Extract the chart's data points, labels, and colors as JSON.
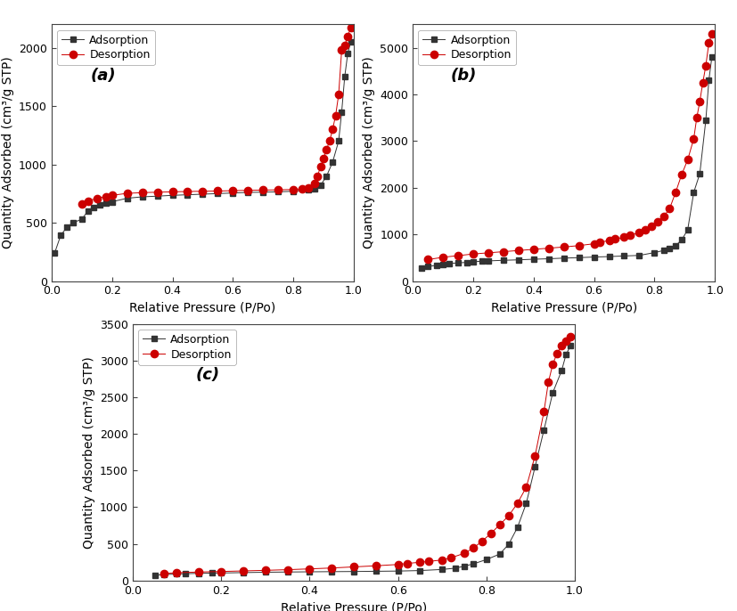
{
  "panel_a": {
    "label": "(a)",
    "ylabel": "Quantity Adsorbed (cm³/g STP)",
    "xlabel": "Relative Pressure (P/Po)",
    "ylim": [
      0,
      2200
    ],
    "xlim": [
      0.0,
      1.0
    ],
    "yticks": [
      0,
      500,
      1000,
      1500,
      2000
    ],
    "xticks": [
      0.0,
      0.2,
      0.4,
      0.6,
      0.8,
      1.0
    ],
    "adsorption_x": [
      0.01,
      0.03,
      0.05,
      0.07,
      0.1,
      0.12,
      0.14,
      0.16,
      0.18,
      0.2,
      0.25,
      0.3,
      0.35,
      0.4,
      0.45,
      0.5,
      0.55,
      0.6,
      0.65,
      0.7,
      0.75,
      0.8,
      0.85,
      0.87,
      0.89,
      0.91,
      0.93,
      0.95,
      0.96,
      0.97,
      0.98,
      0.99
    ],
    "adsorption_y": [
      240,
      390,
      460,
      500,
      530,
      600,
      630,
      650,
      665,
      680,
      710,
      722,
      728,
      735,
      740,
      745,
      750,
      755,
      760,
      762,
      765,
      770,
      780,
      790,
      820,
      900,
      1020,
      1200,
      1450,
      1750,
      1950,
      2050
    ],
    "desorption_x": [
      0.99,
      0.98,
      0.97,
      0.96,
      0.95,
      0.94,
      0.93,
      0.92,
      0.91,
      0.9,
      0.89,
      0.88,
      0.87,
      0.85,
      0.83,
      0.8,
      0.75,
      0.7,
      0.65,
      0.6,
      0.55,
      0.5,
      0.45,
      0.4,
      0.35,
      0.3,
      0.25,
      0.2,
      0.18,
      0.15,
      0.12,
      0.1
    ],
    "desorption_y": [
      2170,
      2100,
      2020,
      1980,
      1600,
      1420,
      1300,
      1200,
      1130,
      1050,
      980,
      900,
      840,
      800,
      790,
      785,
      782,
      780,
      778,
      775,
      772,
      770,
      768,
      765,
      762,
      758,
      752,
      735,
      725,
      710,
      685,
      660
    ]
  },
  "panel_b": {
    "label": "(b)",
    "ylabel": "Quantity Adsorbed (cm³/g STP)",
    "xlabel": "Relative Pressure (P/Po)",
    "ylim": [
      0,
      5500
    ],
    "xlim": [
      0.0,
      1.0
    ],
    "yticks": [
      0,
      1000,
      2000,
      3000,
      4000,
      5000
    ],
    "xticks": [
      0.0,
      0.2,
      0.4,
      0.6,
      0.8,
      1.0
    ],
    "adsorption_x": [
      0.03,
      0.05,
      0.08,
      0.1,
      0.12,
      0.15,
      0.18,
      0.2,
      0.23,
      0.25,
      0.3,
      0.35,
      0.4,
      0.45,
      0.5,
      0.55,
      0.6,
      0.65,
      0.7,
      0.75,
      0.8,
      0.83,
      0.85,
      0.87,
      0.89,
      0.91,
      0.93,
      0.95,
      0.97,
      0.98,
      0.99
    ],
    "adsorption_y": [
      270,
      310,
      340,
      360,
      375,
      390,
      400,
      415,
      425,
      432,
      445,
      455,
      468,
      478,
      492,
      502,
      515,
      525,
      538,
      550,
      610,
      655,
      695,
      760,
      880,
      1100,
      1900,
      2300,
      3450,
      4300,
      4800
    ],
    "desorption_x": [
      0.99,
      0.98,
      0.97,
      0.96,
      0.95,
      0.94,
      0.93,
      0.91,
      0.89,
      0.87,
      0.85,
      0.83,
      0.81,
      0.79,
      0.77,
      0.75,
      0.72,
      0.7,
      0.67,
      0.65,
      0.62,
      0.6,
      0.55,
      0.5,
      0.45,
      0.4,
      0.35,
      0.3,
      0.25,
      0.2,
      0.15,
      0.1,
      0.05
    ],
    "desorption_y": [
      5300,
      5100,
      4620,
      4250,
      3850,
      3500,
      3050,
      2600,
      2280,
      1900,
      1550,
      1380,
      1280,
      1180,
      1100,
      1040,
      980,
      940,
      900,
      870,
      830,
      800,
      760,
      730,
      705,
      680,
      655,
      630,
      605,
      580,
      545,
      510,
      460
    ]
  },
  "panel_c": {
    "label": "(c)",
    "ylabel": "Quantity Adsorbed (cm³/g STP)",
    "xlabel": "Relative Pressure (P/Po)",
    "ylim": [
      0,
      3500
    ],
    "xlim": [
      0.0,
      1.0
    ],
    "yticks": [
      0,
      500,
      1000,
      1500,
      2000,
      2500,
      3000,
      3500
    ],
    "xticks": [
      0.0,
      0.2,
      0.4,
      0.6,
      0.8,
      1.0
    ],
    "adsorption_x": [
      0.05,
      0.07,
      0.1,
      0.12,
      0.15,
      0.18,
      0.2,
      0.25,
      0.3,
      0.35,
      0.4,
      0.45,
      0.5,
      0.55,
      0.6,
      0.65,
      0.7,
      0.73,
      0.75,
      0.77,
      0.8,
      0.83,
      0.85,
      0.87,
      0.89,
      0.91,
      0.93,
      0.95,
      0.97,
      0.98,
      0.99
    ],
    "adsorption_y": [
      70,
      80,
      88,
      92,
      97,
      100,
      102,
      107,
      112,
      115,
      118,
      120,
      122,
      125,
      128,
      135,
      150,
      168,
      195,
      225,
      285,
      360,
      490,
      720,
      1050,
      1550,
      2050,
      2560,
      2860,
      3080,
      3200
    ],
    "desorption_x": [
      0.99,
      0.98,
      0.97,
      0.96,
      0.95,
      0.94,
      0.93,
      0.91,
      0.89,
      0.87,
      0.85,
      0.83,
      0.81,
      0.79,
      0.77,
      0.75,
      0.72,
      0.7,
      0.67,
      0.65,
      0.62,
      0.6,
      0.55,
      0.5,
      0.45,
      0.4,
      0.35,
      0.3,
      0.25,
      0.2,
      0.15,
      0.1,
      0.07
    ],
    "desorption_y": [
      3320,
      3270,
      3200,
      3100,
      2950,
      2700,
      2300,
      1700,
      1270,
      1050,
      880,
      760,
      640,
      535,
      440,
      370,
      310,
      280,
      260,
      248,
      232,
      218,
      200,
      185,
      170,
      158,
      147,
      138,
      130,
      122,
      115,
      105,
      95
    ]
  },
  "adsorption_color": "#333333",
  "desorption_color": "#cc0000",
  "marker_size_sq": 4,
  "marker_size_ci": 6,
  "background_color": "#ffffff",
  "label_fontsize": 13,
  "axis_label_fontsize": 10,
  "tick_labelsize": 9
}
